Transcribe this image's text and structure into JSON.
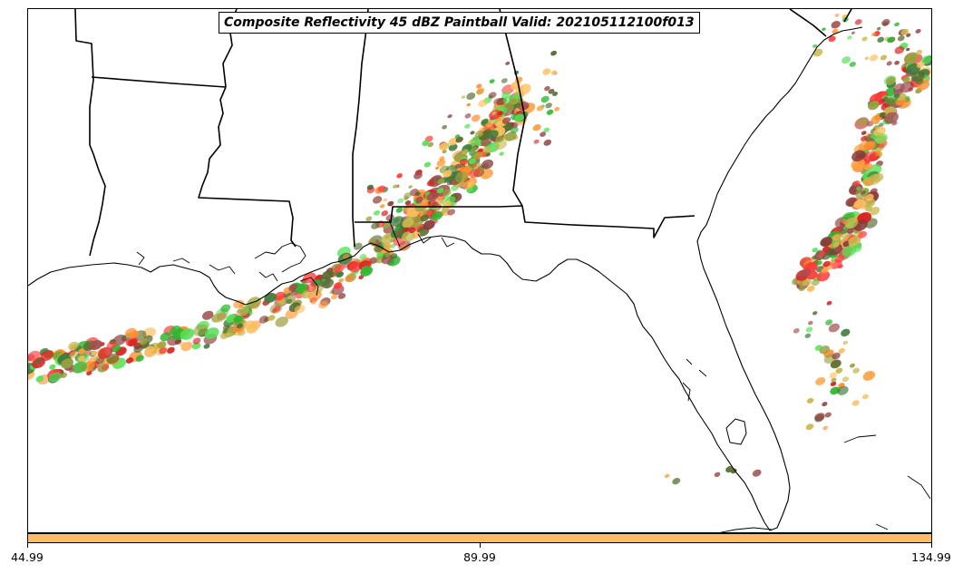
{
  "title": "Composite Reflectivity 45 dBZ Paintball Valid: 202105112100f013",
  "colorbar": {
    "fill_color": "#fdbf5e",
    "ticks": [
      "44.99",
      "89.99",
      "134.99"
    ],
    "range": [
      44.99,
      134.99
    ]
  },
  "paintball_colors": [
    "#ff3b3b",
    "#d62020",
    "#2fb52f",
    "#55e055",
    "#8b3a3a",
    "#a05050",
    "#9aa040",
    "#c8b850",
    "#ff8c30",
    "#ffa040",
    "#fdbf5e",
    "#3c7a3c",
    "#556b2f"
  ],
  "map_features": [
    "coastline",
    "state-borders"
  ]
}
